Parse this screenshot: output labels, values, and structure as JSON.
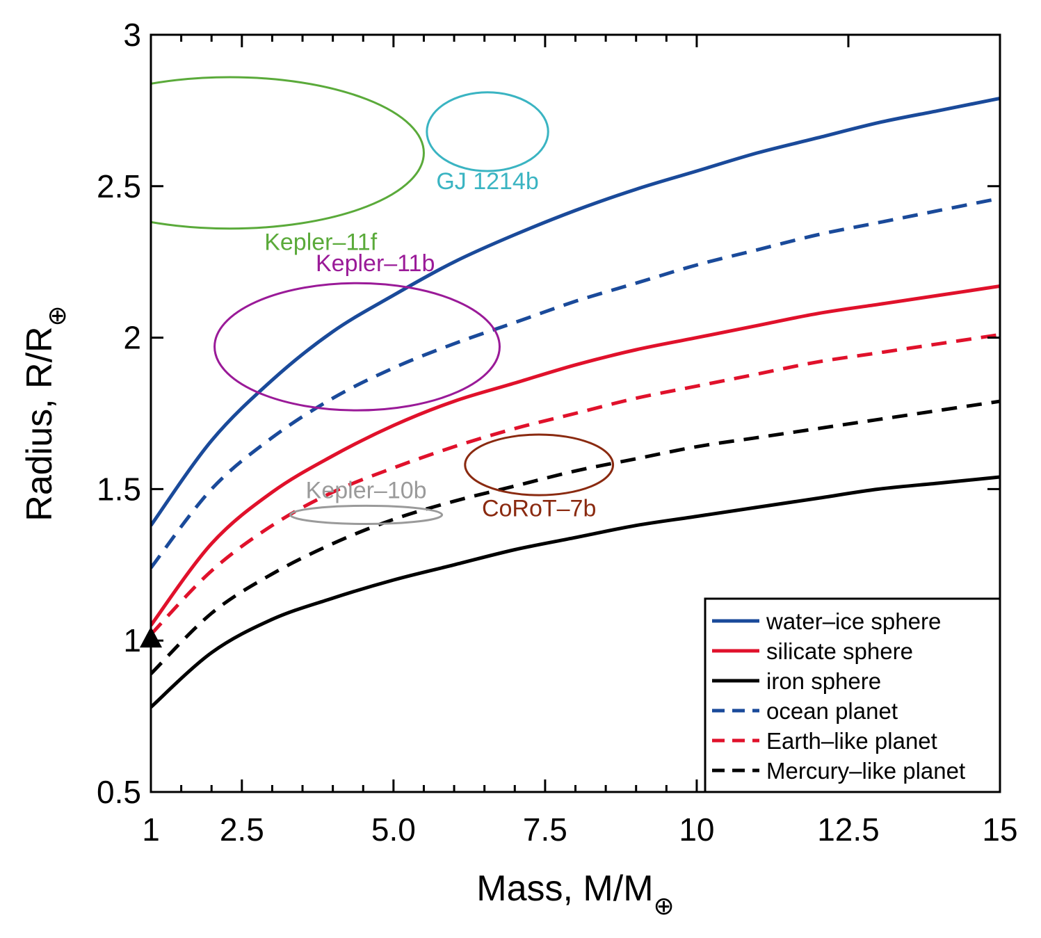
{
  "chart_data": {
    "type": "line",
    "title": "",
    "xlabel": "Mass, M/M",
    "xlabel_sub": "⊕",
    "ylabel": "Radius, R/R",
    "ylabel_sub": "⊕",
    "xlim": [
      1,
      15
    ],
    "ylim": [
      0.5,
      3
    ],
    "x_ticks": [
      1,
      2.5,
      5.0,
      7.5,
      10,
      12.5,
      15
    ],
    "x_tick_labels": [
      "1",
      "2.5",
      "5.0",
      "7.5",
      "10",
      "12.5",
      "15"
    ],
    "x_minor_ticks": [
      1.5,
      2,
      3,
      3.5,
      4,
      4.5,
      5.5,
      6,
      6.5,
      7,
      8,
      8.5,
      9,
      9.5
    ],
    "y_ticks": [
      0.5,
      1,
      1.5,
      2,
      2.5,
      3
    ],
    "y_tick_labels": [
      "0.5",
      "1",
      "1.5",
      "2",
      "2.5",
      "3"
    ],
    "grid": false,
    "legend_position": "bottom-right",
    "series": [
      {
        "name": "water–ice sphere",
        "color": "#1a4a9a",
        "dash": "solid",
        "x": [
          1,
          2,
          3,
          4,
          5,
          6,
          7,
          8,
          9,
          10,
          11,
          12,
          13,
          14,
          15
        ],
        "y": [
          1.38,
          1.66,
          1.86,
          2.02,
          2.14,
          2.25,
          2.34,
          2.42,
          2.49,
          2.55,
          2.61,
          2.66,
          2.71,
          2.75,
          2.79
        ]
      },
      {
        "name": "silicate sphere",
        "color": "#e0112b",
        "dash": "solid",
        "x": [
          1,
          2,
          3,
          4,
          5,
          6,
          7,
          8,
          9,
          10,
          11,
          12,
          13,
          14,
          15
        ],
        "y": [
          1.05,
          1.32,
          1.49,
          1.61,
          1.71,
          1.79,
          1.85,
          1.91,
          1.96,
          2.0,
          2.04,
          2.08,
          2.11,
          2.14,
          2.17
        ]
      },
      {
        "name": "iron sphere",
        "color": "#000000",
        "dash": "solid",
        "x": [
          1,
          2,
          3,
          4,
          5,
          6,
          7,
          8,
          9,
          10,
          11,
          12,
          13,
          14,
          15
        ],
        "y": [
          0.78,
          0.96,
          1.07,
          1.14,
          1.2,
          1.25,
          1.3,
          1.34,
          1.38,
          1.41,
          1.44,
          1.47,
          1.5,
          1.52,
          1.54
        ]
      },
      {
        "name": "ocean planet",
        "color": "#1a4a9a",
        "dash": "dashed",
        "x": [
          1,
          2,
          3,
          4,
          5,
          6,
          7,
          8,
          9,
          10,
          11,
          12,
          13,
          14,
          15
        ],
        "y": [
          1.24,
          1.5,
          1.67,
          1.8,
          1.9,
          1.98,
          2.05,
          2.12,
          2.18,
          2.24,
          2.29,
          2.34,
          2.38,
          2.42,
          2.46
        ]
      },
      {
        "name": "Earth–like planet",
        "color": "#e0112b",
        "dash": "dashed",
        "x": [
          1,
          2,
          3,
          4,
          5,
          6,
          7,
          8,
          9,
          10,
          11,
          12,
          13,
          14,
          15
        ],
        "y": [
          1.02,
          1.23,
          1.38,
          1.49,
          1.57,
          1.64,
          1.7,
          1.75,
          1.8,
          1.84,
          1.88,
          1.92,
          1.95,
          1.98,
          2.01
        ]
      },
      {
        "name": "Mercury–like planet",
        "color": "#000000",
        "dash": "dashed",
        "x": [
          1,
          2,
          3,
          4,
          5,
          6,
          7,
          8,
          9,
          10,
          11,
          12,
          13,
          14,
          15
        ],
        "y": [
          0.89,
          1.09,
          1.22,
          1.32,
          1.4,
          1.46,
          1.51,
          1.56,
          1.6,
          1.64,
          1.67,
          1.7,
          1.73,
          1.76,
          1.79
        ]
      }
    ],
    "planets": [
      {
        "name": "Kepler–11f",
        "color": "#5aaa3a",
        "cx": 2.3,
        "cy": 2.61,
        "rx": 3.2,
        "ry": 0.25,
        "label_x": 3.8,
        "label_y": 2.29
      },
      {
        "name": "GJ 1214b",
        "color": "#3ab4c2",
        "cx": 6.55,
        "cy": 2.68,
        "rx": 1.0,
        "ry": 0.13,
        "label_x": 6.55,
        "label_y": 2.49
      },
      {
        "name": "Kepler–11b",
        "color": "#9a1a98",
        "cx": 4.4,
        "cy": 1.97,
        "rx": 2.35,
        "ry": 0.21,
        "label_x": 4.7,
        "label_y": 2.22
      },
      {
        "name": "Kepler–10b",
        "color": "#9a9a9a",
        "cx": 4.55,
        "cy": 1.415,
        "rx": 1.25,
        "ry": 0.03,
        "label_x": 4.55,
        "label_y": 1.47
      },
      {
        "name": "CoRoT–7b",
        "color": "#8a2a10",
        "cx": 7.4,
        "cy": 1.58,
        "rx": 1.22,
        "ry": 0.1,
        "label_x": 7.4,
        "label_y": 1.41
      }
    ],
    "earth_marker": {
      "x": 1,
      "y": 1,
      "shape": "triangle",
      "color": "#000000"
    }
  }
}
